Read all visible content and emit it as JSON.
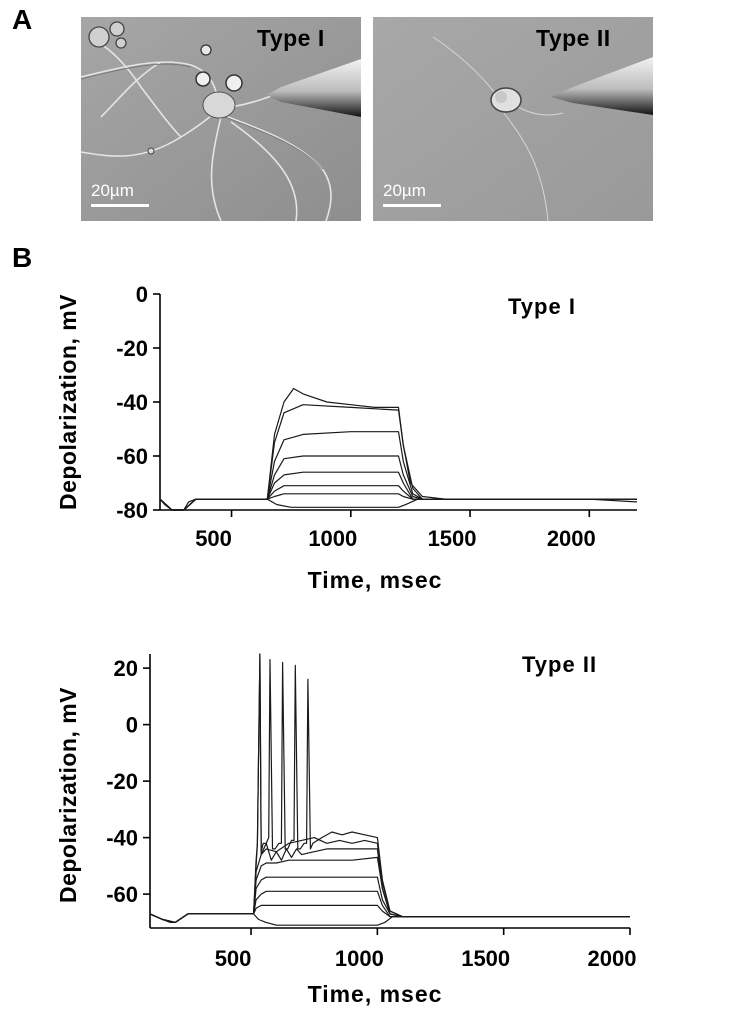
{
  "panel_labels": {
    "a": "A",
    "b": "B"
  },
  "micrographs": [
    {
      "label": "Type I",
      "scale_bar": "20µm"
    },
    {
      "label": "Type II",
      "scale_bar": "20µm"
    }
  ],
  "colors": {
    "trace": "#1a1a1a",
    "axis": "#000000"
  },
  "chart_data": [
    {
      "type": "line",
      "title": "Type I",
      "xlabel": "Time, msec",
      "ylabel": "Depolarization, mV",
      "xlim": [
        200,
        2200
      ],
      "ylim": [
        -80,
        0
      ],
      "xticks": [
        500,
        1000,
        1500,
        2000
      ],
      "yticks": [
        0,
        -20,
        -40,
        -60,
        -80
      ],
      "step_window": [
        650,
        1200
      ],
      "series": [
        {
          "values_x": [
            200,
            220,
            250,
            280,
            300,
            320,
            350,
            400,
            450,
            500,
            550,
            600,
            650,
            680,
            720,
            760,
            800,
            900,
            1000,
            1100,
            1200,
            1220,
            1250,
            1300,
            1400,
            1600,
            1800,
            2000,
            2200
          ],
          "values_y": [
            -76,
            -78,
            -80,
            -81,
            -80,
            -77,
            -76,
            -76,
            -76,
            -76,
            -76,
            -76,
            -76,
            -52,
            -40,
            -35,
            -37,
            -40,
            -41,
            -42,
            -42,
            -56,
            -70,
            -75,
            -76,
            -76,
            -76,
            -76,
            -77
          ]
        },
        {
          "values_x": [
            200,
            250,
            300,
            350,
            400,
            650,
            680,
            720,
            800,
            1000,
            1200,
            1220,
            1260,
            1300,
            1400,
            2200
          ],
          "values_y": [
            -76,
            -80,
            -80,
            -76,
            -76,
            -76,
            -55,
            -44,
            -41,
            -42,
            -43,
            -56,
            -72,
            -76,
            -76,
            -76
          ]
        },
        {
          "values_x": [
            200,
            250,
            300,
            350,
            400,
            650,
            680,
            720,
            800,
            1000,
            1200,
            1220,
            1260,
            1300,
            1400,
            2200
          ],
          "values_y": [
            -76,
            -80,
            -80,
            -76,
            -76,
            -76,
            -62,
            -54,
            -52,
            -51,
            -51,
            -62,
            -74,
            -76,
            -76,
            -76
          ]
        },
        {
          "values_x": [
            200,
            250,
            300,
            350,
            400,
            650,
            680,
            720,
            800,
            1000,
            1200,
            1220,
            1260,
            1300,
            1400,
            2200
          ],
          "values_y": [
            -76,
            -80,
            -80,
            -76,
            -76,
            -76,
            -67,
            -61,
            -60,
            -60,
            -60,
            -67,
            -75,
            -76,
            -76,
            -76
          ]
        },
        {
          "values_x": [
            200,
            250,
            300,
            350,
            400,
            650,
            680,
            720,
            800,
            1000,
            1200,
            1220,
            1260,
            1300,
            1400,
            2200
          ],
          "values_y": [
            -76,
            -80,
            -80,
            -76,
            -76,
            -76,
            -70,
            -67,
            -66,
            -66,
            -66,
            -70,
            -76,
            -76,
            -76,
            -76
          ]
        },
        {
          "values_x": [
            200,
            250,
            300,
            350,
            400,
            650,
            680,
            720,
            800,
            1000,
            1200,
            1220,
            1260,
            1300,
            1400,
            2200
          ],
          "values_y": [
            -76,
            -80,
            -80,
            -76,
            -76,
            -76,
            -73,
            -71,
            -71,
            -71,
            -71,
            -73,
            -76,
            -76,
            -76,
            -76
          ]
        },
        {
          "values_x": [
            200,
            250,
            300,
            350,
            400,
            650,
            680,
            720,
            800,
            1000,
            1200,
            1220,
            1260,
            1300,
            1400,
            2200
          ],
          "values_y": [
            -76,
            -80,
            -80,
            -76,
            -76,
            -76,
            -75,
            -74,
            -74,
            -74,
            -74,
            -75,
            -76,
            -76,
            -76,
            -76
          ]
        },
        {
          "values_x": [
            200,
            250,
            300,
            350,
            400,
            650,
            690,
            750,
            900,
            1100,
            1200,
            1230,
            1280,
            1350,
            1400,
            2200
          ],
          "values_y": [
            -76,
            -80,
            -80,
            -76,
            -76,
            -76,
            -78,
            -79,
            -79,
            -79,
            -79,
            -78,
            -76,
            -76,
            -76,
            -76
          ]
        }
      ]
    },
    {
      "type": "line",
      "title": "Type II",
      "xlabel": "Time, msec",
      "ylabel": "Depolarization, mV",
      "xlim": [
        100,
        2000
      ],
      "ylim": [
        -72,
        25
      ],
      "xticks": [
        500,
        1000,
        1500,
        2000
      ],
      "yticks": [
        20,
        0,
        -20,
        -40,
        -60
      ],
      "step_window": [
        510,
        1000
      ],
      "series": [
        {
          "values_x": [
            100,
            150,
            180,
            200,
            250,
            300,
            510,
            520,
            525,
            535,
            540,
            548,
            560,
            570,
            575,
            585,
            595,
            610,
            620,
            625,
            635,
            645,
            660,
            670,
            675,
            685,
            695,
            710,
            720,
            725,
            735,
            745,
            780,
            820,
            860,
            900,
            950,
            1000,
            1020,
            1050,
            1100,
            1300,
            1600,
            2000
          ],
          "values_y": [
            -67,
            -69,
            -70,
            -70,
            -67,
            -67,
            -67,
            -50,
            -42,
            25,
            -45,
            -42,
            -42,
            -40,
            23,
            -44,
            -44,
            -42,
            -42,
            22,
            -44,
            -44,
            -41,
            -41,
            21,
            -44,
            -44,
            -42,
            -42,
            16,
            -44,
            -42,
            -40,
            -38,
            -39,
            -38,
            -39,
            -40,
            -55,
            -66,
            -68,
            -68,
            -68,
            -68
          ]
        },
        {
          "values_x": [
            100,
            150,
            200,
            250,
            300,
            510,
            520,
            525,
            535,
            540,
            560,
            600,
            650,
            700,
            750,
            800,
            850,
            900,
            950,
            1000,
            1020,
            1050,
            1100,
            2000
          ],
          "values_y": [
            -67,
            -69,
            -70,
            -67,
            -67,
            -67,
            -48,
            -42,
            25,
            -46,
            -44,
            -45,
            -42,
            -41,
            -40,
            -42,
            -41,
            -42,
            -41,
            -42,
            -56,
            -66,
            -68,
            -68
          ]
        },
        {
          "values_x": [
            100,
            150,
            200,
            250,
            300,
            510,
            520,
            540,
            560,
            580,
            600,
            620,
            640,
            660,
            680,
            700,
            750,
            800,
            900,
            1000,
            1020,
            1050,
            1100,
            2000
          ],
          "values_y": [
            -67,
            -69,
            -70,
            -67,
            -67,
            -67,
            -52,
            -46,
            -42,
            -48,
            -45,
            -48,
            -44,
            -47,
            -44,
            -46,
            -45,
            -44,
            -44,
            -44,
            -58,
            -67,
            -68,
            -68
          ]
        },
        {
          "values_x": [
            100,
            150,
            200,
            250,
            300,
            510,
            520,
            540,
            560,
            600,
            650,
            700,
            800,
            900,
            1000,
            1020,
            1050,
            1100,
            2000
          ],
          "values_y": [
            -67,
            -69,
            -70,
            -67,
            -67,
            -67,
            -55,
            -50,
            -49,
            -49,
            -48,
            -48,
            -48,
            -48,
            -47,
            -58,
            -67,
            -68,
            -68
          ]
        },
        {
          "values_x": [
            100,
            150,
            200,
            250,
            300,
            510,
            520,
            540,
            560,
            600,
            700,
            800,
            900,
            1000,
            1020,
            1050,
            1100,
            2000
          ],
          "values_y": [
            -67,
            -69,
            -70,
            -67,
            -67,
            -67,
            -58,
            -55,
            -54,
            -54,
            -54,
            -54,
            -54,
            -54,
            -62,
            -67,
            -68,
            -68
          ]
        },
        {
          "values_x": [
            100,
            150,
            200,
            250,
            300,
            510,
            520,
            540,
            560,
            600,
            700,
            800,
            900,
            1000,
            1020,
            1050,
            1100,
            2000
          ],
          "values_y": [
            -67,
            -69,
            -70,
            -67,
            -67,
            -67,
            -62,
            -60,
            -59,
            -59,
            -59,
            -59,
            -59,
            -59,
            -64,
            -68,
            -68,
            -68
          ]
        },
        {
          "values_x": [
            100,
            150,
            200,
            250,
            300,
            510,
            520,
            540,
            560,
            600,
            700,
            800,
            900,
            1000,
            1020,
            1050,
            1100,
            2000
          ],
          "values_y": [
            -67,
            -69,
            -70,
            -67,
            -67,
            -67,
            -65,
            -64,
            -64,
            -64,
            -64,
            -64,
            -64,
            -64,
            -66,
            -68,
            -68,
            -68
          ]
        },
        {
          "values_x": [
            100,
            150,
            200,
            250,
            300,
            510,
            530,
            560,
            600,
            700,
            800,
            900,
            1000,
            1030,
            1060,
            1100,
            2000
          ],
          "values_y": [
            -67,
            -69,
            -70,
            -67,
            -67,
            -67,
            -69,
            -70,
            -71,
            -71,
            -71,
            -71,
            -71,
            -70,
            -68,
            -68,
            -68
          ]
        }
      ]
    }
  ]
}
